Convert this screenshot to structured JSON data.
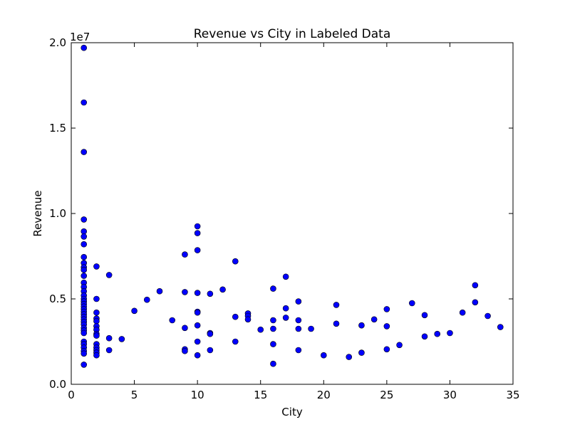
{
  "chart_data": {
    "type": "scatter",
    "title": "Revenue vs City in Labeled Data",
    "xlabel": "City",
    "ylabel": "Revenue",
    "y_offset_label": "1e7",
    "xlim": [
      0,
      35
    ],
    "ylim": [
      0,
      20000000
    ],
    "x_ticks": [
      0,
      5,
      10,
      15,
      20,
      25,
      30,
      35
    ],
    "x_tick_labels": [
      "0",
      "5",
      "10",
      "15",
      "20",
      "25",
      "30",
      "35"
    ],
    "y_ticks": [
      0,
      5000000,
      10000000,
      15000000,
      20000000
    ],
    "y_tick_labels": [
      "0.0",
      "0.5",
      "1.0",
      "1.5",
      "2.0"
    ],
    "grid": false,
    "marker_color": "#0000ff",
    "marker_edge_color": "#000000",
    "points": [
      {
        "x": 1,
        "y": 19700000
      },
      {
        "x": 1,
        "y": 16500000
      },
      {
        "x": 1,
        "y": 13600000
      },
      {
        "x": 1,
        "y": 9650000
      },
      {
        "x": 1,
        "y": 8950000
      },
      {
        "x": 1,
        "y": 8650000
      },
      {
        "x": 1,
        "y": 8200000
      },
      {
        "x": 1,
        "y": 7450000
      },
      {
        "x": 1,
        "y": 7100000
      },
      {
        "x": 1,
        "y": 6850000
      },
      {
        "x": 1,
        "y": 6700000
      },
      {
        "x": 1,
        "y": 6350000
      },
      {
        "x": 1,
        "y": 5950000
      },
      {
        "x": 1,
        "y": 5700000
      },
      {
        "x": 1,
        "y": 5450000
      },
      {
        "x": 1,
        "y": 5200000
      },
      {
        "x": 1,
        "y": 5000000
      },
      {
        "x": 1,
        "y": 4850000
      },
      {
        "x": 1,
        "y": 4700000
      },
      {
        "x": 1,
        "y": 4550000
      },
      {
        "x": 1,
        "y": 4400000
      },
      {
        "x": 1,
        "y": 4250000
      },
      {
        "x": 1,
        "y": 4100000
      },
      {
        "x": 1,
        "y": 3950000
      },
      {
        "x": 1,
        "y": 3800000
      },
      {
        "x": 1,
        "y": 3650000
      },
      {
        "x": 1,
        "y": 3500000
      },
      {
        "x": 1,
        "y": 3300000
      },
      {
        "x": 1,
        "y": 3150000
      },
      {
        "x": 1,
        "y": 3000000
      },
      {
        "x": 1,
        "y": 2500000
      },
      {
        "x": 1,
        "y": 2350000
      },
      {
        "x": 1,
        "y": 2150000
      },
      {
        "x": 1,
        "y": 1950000
      },
      {
        "x": 1,
        "y": 1800000
      },
      {
        "x": 1,
        "y": 1150000
      },
      {
        "x": 2,
        "y": 6900000
      },
      {
        "x": 2,
        "y": 5000000
      },
      {
        "x": 2,
        "y": 4200000
      },
      {
        "x": 2,
        "y": 3850000
      },
      {
        "x": 2,
        "y": 3700000
      },
      {
        "x": 2,
        "y": 3400000
      },
      {
        "x": 2,
        "y": 3200000
      },
      {
        "x": 2,
        "y": 2950000
      },
      {
        "x": 2,
        "y": 2850000
      },
      {
        "x": 2,
        "y": 2350000
      },
      {
        "x": 2,
        "y": 2150000
      },
      {
        "x": 2,
        "y": 2000000
      },
      {
        "x": 2,
        "y": 1850000
      },
      {
        "x": 2,
        "y": 1700000
      },
      {
        "x": 3,
        "y": 6400000
      },
      {
        "x": 3,
        "y": 2700000
      },
      {
        "x": 3,
        "y": 2000000
      },
      {
        "x": 4,
        "y": 2650000
      },
      {
        "x": 5,
        "y": 4300000
      },
      {
        "x": 6,
        "y": 4950000
      },
      {
        "x": 7,
        "y": 5450000
      },
      {
        "x": 8,
        "y": 3750000
      },
      {
        "x": 9,
        "y": 7600000
      },
      {
        "x": 9,
        "y": 5400000
      },
      {
        "x": 9,
        "y": 3300000
      },
      {
        "x": 9,
        "y": 2050000
      },
      {
        "x": 9,
        "y": 1950000
      },
      {
        "x": 10,
        "y": 9250000
      },
      {
        "x": 10,
        "y": 8850000
      },
      {
        "x": 10,
        "y": 7850000
      },
      {
        "x": 10,
        "y": 5350000
      },
      {
        "x": 10,
        "y": 4250000
      },
      {
        "x": 10,
        "y": 4200000
      },
      {
        "x": 10,
        "y": 3450000
      },
      {
        "x": 10,
        "y": 2500000
      },
      {
        "x": 10,
        "y": 1700000
      },
      {
        "x": 11,
        "y": 5300000
      },
      {
        "x": 11,
        "y": 3000000
      },
      {
        "x": 11,
        "y": 2950000
      },
      {
        "x": 11,
        "y": 2000000
      },
      {
        "x": 12,
        "y": 5550000
      },
      {
        "x": 13,
        "y": 7200000
      },
      {
        "x": 13,
        "y": 3950000
      },
      {
        "x": 13,
        "y": 2500000
      },
      {
        "x": 14,
        "y": 4150000
      },
      {
        "x": 14,
        "y": 4000000
      },
      {
        "x": 14,
        "y": 3800000
      },
      {
        "x": 15,
        "y": 3200000
      },
      {
        "x": 16,
        "y": 5600000
      },
      {
        "x": 16,
        "y": 3750000
      },
      {
        "x": 16,
        "y": 3250000
      },
      {
        "x": 16,
        "y": 2350000
      },
      {
        "x": 16,
        "y": 1200000
      },
      {
        "x": 17,
        "y": 6300000
      },
      {
        "x": 17,
        "y": 4450000
      },
      {
        "x": 17,
        "y": 3900000
      },
      {
        "x": 18,
        "y": 4850000
      },
      {
        "x": 18,
        "y": 3750000
      },
      {
        "x": 18,
        "y": 3250000
      },
      {
        "x": 18,
        "y": 2000000
      },
      {
        "x": 19,
        "y": 3250000
      },
      {
        "x": 20,
        "y": 1700000
      },
      {
        "x": 21,
        "y": 4650000
      },
      {
        "x": 21,
        "y": 3550000
      },
      {
        "x": 22,
        "y": 1600000
      },
      {
        "x": 23,
        "y": 3450000
      },
      {
        "x": 23,
        "y": 1850000
      },
      {
        "x": 24,
        "y": 3800000
      },
      {
        "x": 25,
        "y": 4400000
      },
      {
        "x": 25,
        "y": 3400000
      },
      {
        "x": 25,
        "y": 2050000
      },
      {
        "x": 26,
        "y": 2300000
      },
      {
        "x": 27,
        "y": 4750000
      },
      {
        "x": 28,
        "y": 4050000
      },
      {
        "x": 28,
        "y": 2800000
      },
      {
        "x": 29,
        "y": 2950000
      },
      {
        "x": 30,
        "y": 3000000
      },
      {
        "x": 31,
        "y": 4200000
      },
      {
        "x": 32,
        "y": 5800000
      },
      {
        "x": 32,
        "y": 4800000
      },
      {
        "x": 33,
        "y": 4000000
      },
      {
        "x": 34,
        "y": 3350000
      }
    ]
  }
}
